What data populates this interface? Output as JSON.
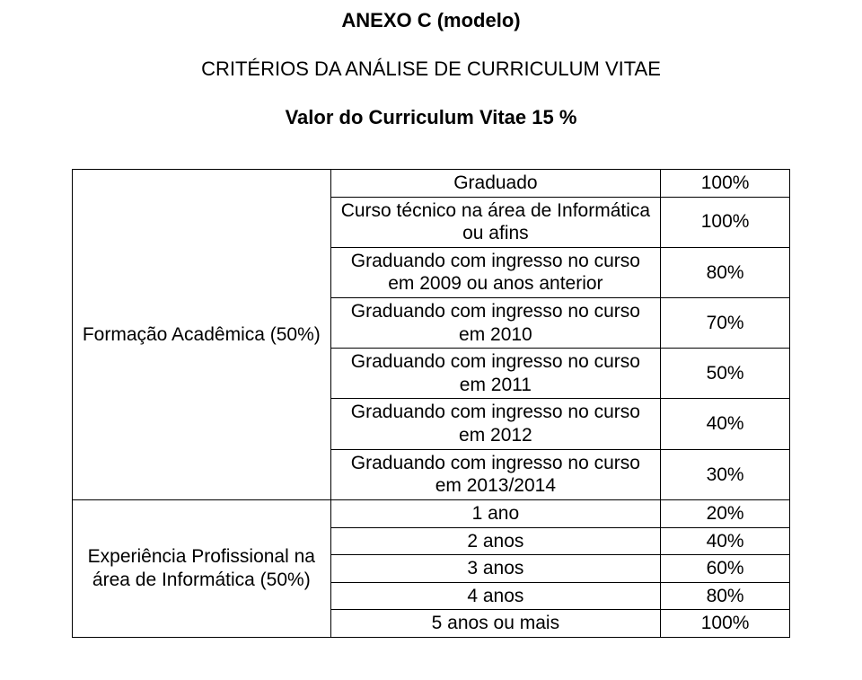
{
  "doc": {
    "title": "ANEXO C (modelo)",
    "subtitle": "CRITÉRIOS DA ANÁLISE DE CURRICULUM VITAE",
    "subheading": "Valor do Curriculum Vitae 15 %"
  },
  "table": {
    "section1_label": "Formação Acadêmica (50%)",
    "section2_label": "Experiência Profissional na área de Informática (50%)",
    "rows_section1": [
      {
        "criteria": "Graduado",
        "value": "100%"
      },
      {
        "criteria": "Curso técnico na área de Informática ou afins",
        "value": "100%"
      },
      {
        "criteria": "Graduando com ingresso no curso em 2009 ou anos anterior",
        "value": "80%"
      },
      {
        "criteria": "Graduando com ingresso no curso em 2010",
        "value": "70%"
      },
      {
        "criteria": "Graduando com ingresso no curso em 2011",
        "value": "50%"
      },
      {
        "criteria": "Graduando com ingresso no curso em 2012",
        "value": "40%"
      },
      {
        "criteria": "Graduando com ingresso no curso em 2013/2014",
        "value": "30%"
      }
    ],
    "rows_section2": [
      {
        "criteria": "1 ano",
        "value": "20%"
      },
      {
        "criteria": "2 anos",
        "value": "40%"
      },
      {
        "criteria": "3 anos",
        "value": "60%"
      },
      {
        "criteria": "4 anos",
        "value": "80%"
      },
      {
        "criteria": "5 anos ou mais",
        "value": "100%"
      }
    ]
  },
  "style": {
    "background_color": "#ffffff",
    "text_color": "#000000",
    "border_color": "#000000",
    "title_fontsize": 22,
    "body_fontsize": 21,
    "col_widths_pct": [
      36,
      46,
      18
    ]
  }
}
